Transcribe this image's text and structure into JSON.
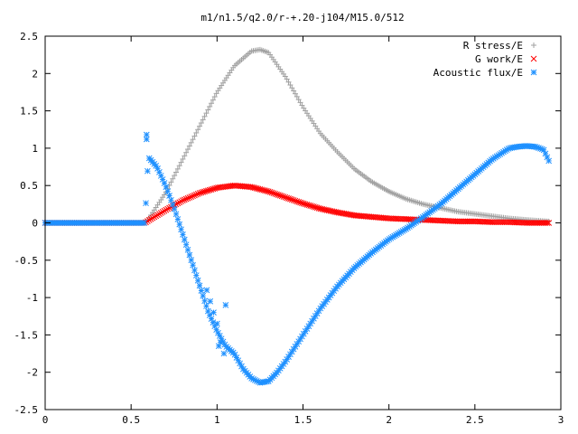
{
  "chart_data": {
    "type": "scatter",
    "title": "m1/n1.5/q2.0/r-+.20-j104/M15.0/512",
    "xlabel": "",
    "ylabel": "",
    "xlim": [
      0,
      3
    ],
    "ylim": [
      -2.5,
      2.5
    ],
    "x_ticks": [
      0,
      0.5,
      1,
      1.5,
      2,
      2.5,
      3
    ],
    "x_tick_labels": [
      "0",
      "0.5",
      "1",
      "1.5",
      "2",
      "2.5",
      "3"
    ],
    "y_ticks": [
      -2.5,
      -2,
      -1.5,
      -1,
      -0.5,
      0,
      0.5,
      1,
      1.5,
      2,
      2.5
    ],
    "y_tick_labels": [
      "-2.5",
      "-2",
      "-1.5",
      "-1",
      "-0.5",
      "0",
      "0.5",
      "1",
      "1.5",
      "2",
      "2.5"
    ],
    "grid": false,
    "legend_position": "top-right",
    "series": [
      {
        "name": "R stress/E",
        "marker": "plus",
        "color": "#a0a0a0",
        "x": [
          0,
          0.2,
          0.4,
          0.58,
          0.6,
          0.7,
          0.8,
          0.9,
          1.0,
          1.1,
          1.2,
          1.25,
          1.3,
          1.4,
          1.5,
          1.6,
          1.7,
          1.8,
          1.9,
          2.0,
          2.1,
          2.2,
          2.3,
          2.4,
          2.5,
          2.6,
          2.7,
          2.8,
          2.93
        ],
        "y": [
          0,
          0,
          0,
          0,
          0.05,
          0.4,
          0.85,
          1.3,
          1.75,
          2.1,
          2.3,
          2.32,
          2.28,
          1.95,
          1.55,
          1.2,
          0.95,
          0.72,
          0.55,
          0.42,
          0.32,
          0.25,
          0.2,
          0.15,
          0.12,
          0.09,
          0.06,
          0.04,
          0.02
        ]
      },
      {
        "name": "G work/E",
        "marker": "cross",
        "color": "#ff0000",
        "x": [
          0,
          0.2,
          0.4,
          0.58,
          0.6,
          0.7,
          0.8,
          0.9,
          1.0,
          1.1,
          1.2,
          1.3,
          1.4,
          1.5,
          1.6,
          1.7,
          1.8,
          1.9,
          2.0,
          2.1,
          2.2,
          2.3,
          2.4,
          2.5,
          2.6,
          2.7,
          2.8,
          2.93
        ],
        "y": [
          0,
          0,
          0,
          0,
          0.03,
          0.17,
          0.3,
          0.4,
          0.47,
          0.5,
          0.48,
          0.42,
          0.34,
          0.26,
          0.19,
          0.14,
          0.1,
          0.08,
          0.06,
          0.05,
          0.04,
          0.03,
          0.02,
          0.02,
          0.01,
          0.01,
          0.0,
          0.0
        ]
      },
      {
        "name": "Acoustic flux/E",
        "marker": "star",
        "color": "#1e90ff",
        "x": [
          0,
          0.2,
          0.4,
          0.58,
          0.6,
          0.65,
          0.7,
          0.75,
          0.8,
          0.85,
          0.9,
          0.95,
          1.0,
          1.05,
          1.1,
          1.15,
          1.2,
          1.25,
          1.3,
          1.35,
          1.4,
          1.5,
          1.6,
          1.7,
          1.8,
          1.9,
          2.0,
          2.1,
          2.2,
          2.3,
          2.4,
          2.5,
          2.6,
          2.7,
          2.75,
          2.8,
          2.85,
          2.9,
          2.93
        ],
        "y": [
          0,
          0,
          0,
          0,
          0.88,
          0.75,
          0.5,
          0.2,
          -0.15,
          -0.5,
          -0.85,
          -1.2,
          -1.45,
          -1.65,
          -1.75,
          -1.95,
          -2.08,
          -2.14,
          -2.12,
          -2.0,
          -1.85,
          -1.5,
          -1.15,
          -0.85,
          -0.6,
          -0.4,
          -0.22,
          -0.08,
          0.08,
          0.25,
          0.45,
          0.65,
          0.85,
          1.0,
          1.02,
          1.03,
          1.02,
          0.98,
          0.83
        ]
      }
    ],
    "extra_points": [
      {
        "series": 2,
        "x": 0.59,
        "y": 1.18
      },
      {
        "series": 2,
        "x": 0.59,
        "y": 1.12
      },
      {
        "series": 2,
        "x": 0.94,
        "y": -0.9
      },
      {
        "series": 2,
        "x": 0.96,
        "y": -1.05
      },
      {
        "series": 2,
        "x": 0.98,
        "y": -1.2
      },
      {
        "series": 2,
        "x": 1.0,
        "y": -1.35
      },
      {
        "series": 2,
        "x": 1.02,
        "y": -1.6
      },
      {
        "series": 2,
        "x": 1.04,
        "y": -1.75
      },
      {
        "series": 2,
        "x": 1.05,
        "y": -1.1
      },
      {
        "series": 2,
        "x": 1.01,
        "y": -1.65
      }
    ]
  }
}
